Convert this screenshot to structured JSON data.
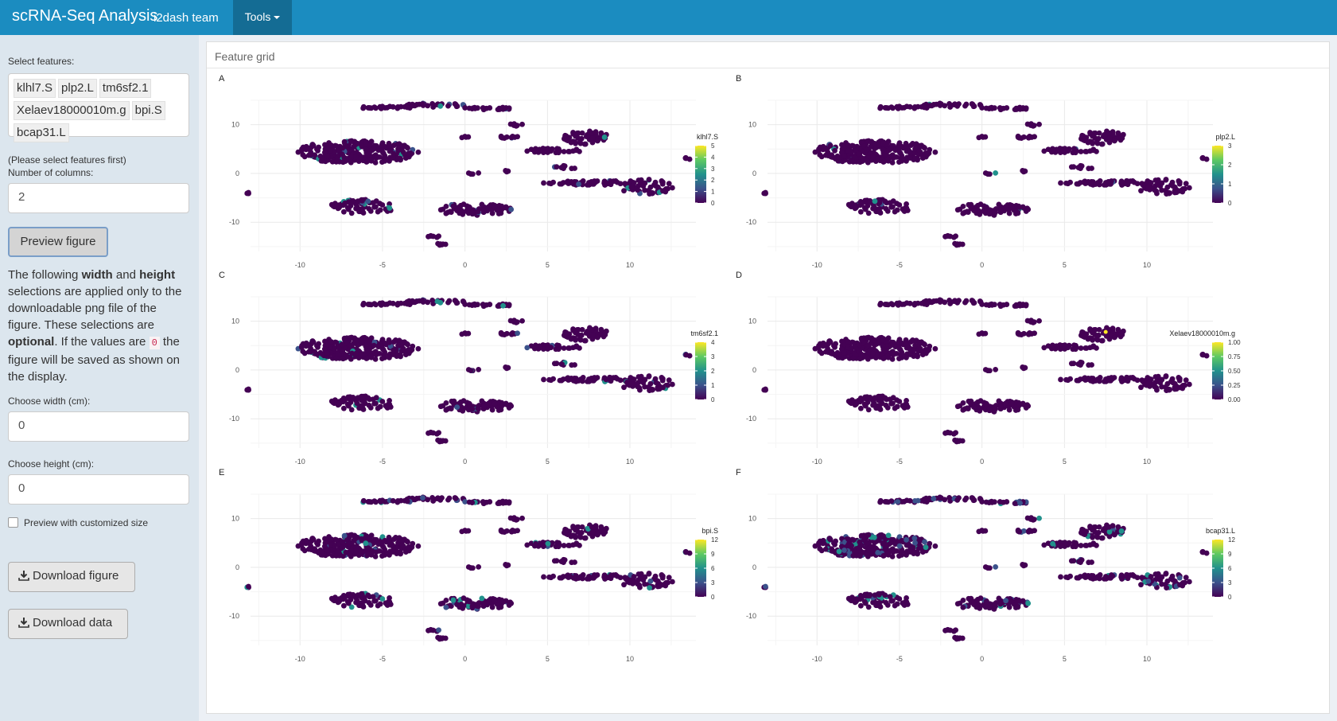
{
  "navbar": {
    "brand": "scRNA-Seq Analysis",
    "team": "i2dash team",
    "tools_label": "Tools"
  },
  "sidebar": {
    "select_features_label": "Select features:",
    "selected_features": [
      "klhl7.S",
      "plp2.L",
      "tm6sf2.1",
      "Xelaev18000010m.g",
      "bpi.S",
      "bcap31.L"
    ],
    "columns_hint": "(Please select features first)",
    "columns_label": "Number of columns:",
    "columns_value": "2",
    "preview_button": "Preview figure",
    "info": {
      "t1": "The following ",
      "width_word": "width",
      "t2": " and ",
      "height_word": "height",
      "t3": " selections are applied only to the downloadable png file of the figure. These selections are ",
      "optional_word": "optional",
      "t4": ". If the values are ",
      "zero_code": "0",
      "t5": " the figure will be saved as shown on the display."
    },
    "width_label": "Choose width (cm):",
    "width_value": "0",
    "height_label": "Choose height (cm):",
    "height_value": "0",
    "custom_size_label": "Preview with customized size",
    "download_figure_button": "Download figure",
    "download_data_button": "Download data"
  },
  "panel": {
    "title": "Feature grid"
  },
  "colors": {
    "navbar": "#1b8cc0",
    "navbar_active": "#146c94",
    "background_dark_point": "#440154",
    "viridis": [
      "#440154",
      "#3b528b",
      "#21918c",
      "#5ec962",
      "#fde725"
    ]
  },
  "chart_data": [
    {
      "panel": "A",
      "type": "scatter",
      "feature": "klhl7.S",
      "legend_title": "klhl7.S",
      "legend_ticks": [
        "5",
        "4",
        "3",
        "2",
        "1",
        "0"
      ],
      "color_range": [
        0,
        5
      ],
      "xlim": [
        -13,
        14
      ],
      "ylim": [
        -16,
        15
      ],
      "x_ticks": [
        -10,
        -5,
        0,
        5,
        10
      ],
      "y_ticks": [
        10,
        0,
        -10
      ],
      "expression": "sparse"
    },
    {
      "panel": "B",
      "type": "scatter",
      "feature": "plp2.L",
      "legend_title": "plp2.L",
      "legend_ticks": [
        "3",
        "2",
        "1",
        "0"
      ],
      "color_range": [
        0,
        3
      ],
      "xlim": [
        -13,
        14
      ],
      "ylim": [
        -16,
        15
      ],
      "x_ticks": [
        -10,
        -5,
        0,
        5,
        10
      ],
      "y_ticks": [
        10,
        0,
        -10
      ],
      "expression": "very sparse"
    },
    {
      "panel": "C",
      "type": "scatter",
      "feature": "tm6sf2.1",
      "legend_title": "tm6sf2.1",
      "legend_ticks": [
        "4",
        "3",
        "2",
        "1",
        "0"
      ],
      "color_range": [
        0,
        4
      ],
      "xlim": [
        -13,
        14
      ],
      "ylim": [
        -16,
        15
      ],
      "x_ticks": [
        -10,
        -5,
        0,
        5,
        10
      ],
      "y_ticks": [
        10,
        0,
        -10
      ],
      "expression": "sparse"
    },
    {
      "panel": "D",
      "type": "scatter",
      "feature": "Xelaev18000010m.g",
      "legend_title": "Xelaev18000010m.g",
      "legend_ticks": [
        "1.00",
        "0.75",
        "0.50",
        "0.25",
        "0.00"
      ],
      "color_range": [
        0,
        1
      ],
      "xlim": [
        -13,
        14
      ],
      "ylim": [
        -16,
        15
      ],
      "x_ticks": [
        -10,
        -5,
        0,
        5,
        10
      ],
      "y_ticks": [
        10,
        0,
        -10
      ],
      "expression": "single cell"
    },
    {
      "panel": "E",
      "type": "scatter",
      "feature": "bpi.S",
      "legend_title": "bpi.S",
      "legend_ticks": [
        "12",
        "9",
        "6",
        "3",
        "0"
      ],
      "color_range": [
        0,
        12
      ],
      "xlim": [
        -13,
        14
      ],
      "ylim": [
        -16,
        15
      ],
      "x_ticks": [
        -10,
        -5,
        0,
        5,
        10
      ],
      "y_ticks": [
        10,
        0,
        -10
      ],
      "expression": "sparse"
    },
    {
      "panel": "F",
      "type": "scatter",
      "feature": "bcap31.L",
      "legend_title": "bcap31.L",
      "legend_ticks": [
        "12",
        "9",
        "6",
        "3",
        "0"
      ],
      "color_range": [
        0,
        12
      ],
      "xlim": [
        -13,
        14
      ],
      "ylim": [
        -16,
        15
      ],
      "x_ticks": [
        -10,
        -5,
        0,
        5,
        10
      ],
      "y_ticks": [
        10,
        0,
        -10
      ],
      "expression": "moderate"
    }
  ]
}
